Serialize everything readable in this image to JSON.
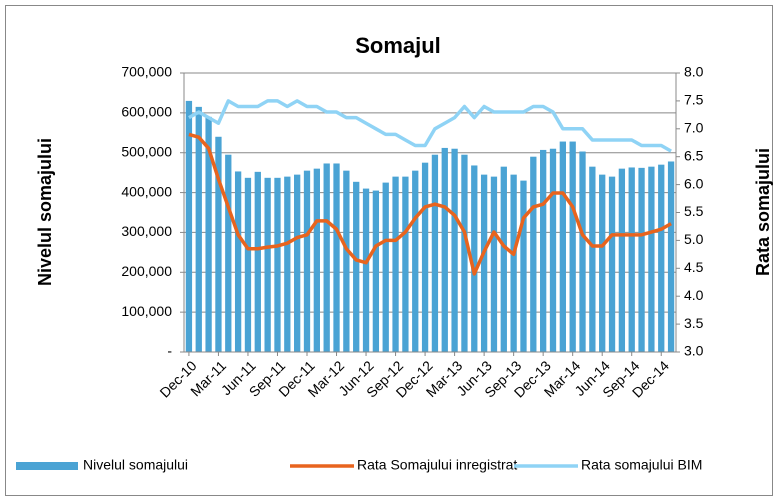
{
  "chart_data": {
    "type": "bar",
    "title": "Somajul",
    "y_label": "Nivelul somajului",
    "y2_label": "Rata somajului",
    "categories": [
      "Dec-10",
      null,
      null,
      "Mar-11",
      null,
      null,
      "Jun-11",
      null,
      null,
      "Sep-11",
      null,
      null,
      "Dec-11",
      null,
      null,
      "Mar-12",
      null,
      null,
      "Jun-12",
      null,
      null,
      "Sep-12",
      null,
      null,
      "Dec-12",
      null,
      null,
      "Mar-13",
      null,
      null,
      "Jun-13",
      null,
      null,
      "Sep-13",
      null,
      null,
      "Dec-13",
      null,
      null,
      "Mar-14",
      null,
      null,
      "Jun-14",
      null,
      null,
      "Sep-14",
      null,
      null,
      "Dec-14",
      null
    ],
    "series": [
      {
        "name": "Nivelul somajului",
        "type": "bar",
        "axis": "y",
        "color": "#4aa3d4",
        "values": [
          630000,
          615000,
          590000,
          540000,
          495000,
          453000,
          437000,
          452000,
          437000,
          437000,
          440000,
          445000,
          455000,
          460000,
          473000,
          473000,
          455000,
          427000,
          410000,
          405000,
          425000,
          440000,
          440000,
          455000,
          475000,
          495000,
          512000,
          510000,
          495000,
          468000,
          445000,
          440000,
          465000,
          445000,
          430000,
          490000,
          507000,
          510000,
          528000,
          528000,
          503000,
          465000,
          445000,
          440000,
          460000,
          463000,
          462000,
          465000,
          470000,
          478000
        ]
      },
      {
        "name": "Rata Somajului inregistrat",
        "type": "line",
        "axis": "y2",
        "color": "#e8641e",
        "values": [
          6.9,
          6.85,
          6.65,
          6.1,
          5.6,
          5.1,
          4.85,
          4.85,
          4.88,
          4.9,
          4.95,
          5.05,
          5.1,
          5.35,
          5.35,
          5.2,
          4.85,
          4.65,
          4.6,
          4.9,
          5.0,
          5.0,
          5.15,
          5.4,
          5.6,
          5.65,
          5.6,
          5.45,
          5.15,
          4.4,
          4.8,
          5.15,
          4.9,
          4.75,
          5.4,
          5.6,
          5.65,
          5.85,
          5.85,
          5.6,
          5.1,
          4.9,
          4.9,
          5.1,
          5.1,
          5.1,
          5.1,
          5.15,
          5.2,
          5.3
        ]
      },
      {
        "name": "Rata somajului BIM",
        "type": "line",
        "axis": "y2",
        "color": "#8fd3f5",
        "values": [
          7.2,
          7.3,
          7.2,
          7.1,
          7.5,
          7.4,
          7.4,
          7.4,
          7.5,
          7.5,
          7.4,
          7.5,
          7.4,
          7.4,
          7.3,
          7.3,
          7.2,
          7.2,
          7.1,
          7.0,
          6.9,
          6.9,
          6.8,
          6.7,
          6.7,
          7.0,
          7.1,
          7.2,
          7.4,
          7.2,
          7.4,
          7.3,
          7.3,
          7.3,
          7.3,
          7.4,
          7.4,
          7.3,
          7.0,
          7.0,
          7.0,
          6.8,
          6.8,
          6.8,
          6.8,
          6.8,
          6.7,
          6.7,
          6.7,
          6.6
        ]
      }
    ],
    "ylim": [
      0,
      700000
    ],
    "yticks": [
      {
        "value": 0,
        "label": "-"
      },
      {
        "value": 100000,
        "label": "100,000"
      },
      {
        "value": 200000,
        "label": "200,000"
      },
      {
        "value": 300000,
        "label": "300,000"
      },
      {
        "value": 400000,
        "label": "400,000"
      },
      {
        "value": 500000,
        "label": "500,000"
      },
      {
        "value": 600000,
        "label": "600,000"
      },
      {
        "value": 700000,
        "label": "700,000"
      }
    ],
    "y2lim": [
      3,
      8
    ],
    "y2ticks": [
      {
        "value": 3,
        "label": "3.0"
      },
      3.5,
      {
        "value": 4,
        "label": "4.0"
      },
      4.5,
      {
        "value": 5,
        "label": "5.0"
      },
      5.5,
      {
        "value": 6,
        "label": "6.0"
      },
      6.5,
      {
        "value": 7,
        "label": "7.0"
      },
      7.5,
      {
        "value": 8,
        "label": "8.0"
      }
    ],
    "grid": true,
    "legend": "bottom"
  }
}
